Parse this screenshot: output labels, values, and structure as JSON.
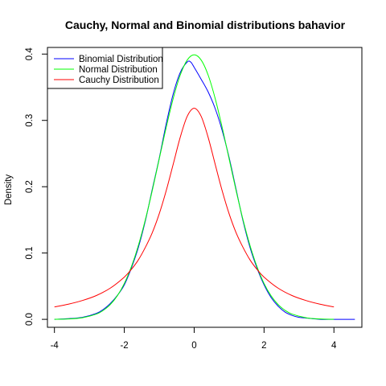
{
  "chart_data": {
    "type": "line",
    "title": "Cauchy, Normal and Binomial distributions bahavior",
    "xlabel": "",
    "ylabel": "Density",
    "xlim": [
      -4.2,
      4.8
    ],
    "ylim": [
      -0.012,
      0.41
    ],
    "x_ticks": [
      -4,
      -2,
      0,
      2,
      4
    ],
    "x_tick_labels": [
      "-4",
      "-2",
      "0",
      "2",
      "4"
    ],
    "y_ticks": [
      0.0,
      0.1,
      0.2,
      0.3,
      0.4
    ],
    "y_tick_labels": [
      "0.0",
      "0.1",
      "0.2",
      "0.3",
      "0.4"
    ],
    "grid": false,
    "legend_position": "top-left",
    "series": [
      {
        "name": "Binomial Distribution",
        "color": "#0000ff",
        "x": [
          -4.0,
          -3.6,
          -3.2,
          -2.8,
          -2.6,
          -2.4,
          -2.2,
          -2.0,
          -1.8,
          -1.6,
          -1.4,
          -1.2,
          -1.0,
          -0.8,
          -0.6,
          -0.4,
          -0.2,
          -0.1,
          0.0,
          0.2,
          0.4,
          0.6,
          0.8,
          1.0,
          1.2,
          1.4,
          1.6,
          1.8,
          2.0,
          2.2,
          2.4,
          2.6,
          2.8,
          3.0,
          3.2,
          3.6,
          4.0,
          4.6
        ],
        "y": [
          0.0,
          0.001,
          0.003,
          0.009,
          0.015,
          0.024,
          0.036,
          0.052,
          0.077,
          0.108,
          0.148,
          0.196,
          0.243,
          0.295,
          0.34,
          0.372,
          0.388,
          0.388,
          0.38,
          0.362,
          0.343,
          0.318,
          0.285,
          0.244,
          0.196,
          0.148,
          0.108,
          0.077,
          0.052,
          0.033,
          0.02,
          0.011,
          0.006,
          0.003,
          0.002,
          0.0,
          0.0,
          0.0
        ]
      },
      {
        "name": "Normal Distribution",
        "color": "#00ff00",
        "x": [
          -4.0,
          -3.6,
          -3.2,
          -2.8,
          -2.6,
          -2.4,
          -2.2,
          -2.0,
          -1.8,
          -1.6,
          -1.4,
          -1.2,
          -1.0,
          -0.8,
          -0.6,
          -0.4,
          -0.2,
          0.0,
          0.2,
          0.4,
          0.6,
          0.8,
          1.0,
          1.2,
          1.4,
          1.6,
          1.8,
          2.0,
          2.2,
          2.4,
          2.6,
          2.8,
          3.2,
          3.6,
          4.0
        ],
        "y": [
          0.0001,
          0.0006,
          0.0024,
          0.0079,
          0.0136,
          0.0224,
          0.0355,
          0.054,
          0.079,
          0.1109,
          0.1497,
          0.1942,
          0.242,
          0.2897,
          0.3332,
          0.3683,
          0.391,
          0.3989,
          0.391,
          0.3683,
          0.3332,
          0.2897,
          0.242,
          0.1942,
          0.1497,
          0.1109,
          0.079,
          0.054,
          0.0355,
          0.0224,
          0.0136,
          0.0079,
          0.0024,
          0.0006,
          0.0001
        ]
      },
      {
        "name": "Cauchy Distribution",
        "color": "#ff0000",
        "x": [
          -4.0,
          -3.6,
          -3.2,
          -2.8,
          -2.4,
          -2.0,
          -1.8,
          -1.6,
          -1.4,
          -1.2,
          -1.0,
          -0.8,
          -0.6,
          -0.4,
          -0.2,
          0.0,
          0.2,
          0.4,
          0.6,
          0.8,
          1.0,
          1.2,
          1.4,
          1.6,
          1.8,
          2.0,
          2.4,
          2.8,
          3.2,
          3.6,
          4.0
        ],
        "y": [
          0.0187,
          0.0229,
          0.0284,
          0.0359,
          0.0471,
          0.0637,
          0.0752,
          0.0895,
          0.1083,
          0.1306,
          0.1592,
          0.1941,
          0.234,
          0.2744,
          0.3061,
          0.3183,
          0.3061,
          0.2744,
          0.234,
          0.1941,
          0.1592,
          0.1306,
          0.1083,
          0.0895,
          0.0752,
          0.0637,
          0.0471,
          0.0359,
          0.0284,
          0.0229,
          0.0187
        ]
      }
    ]
  }
}
